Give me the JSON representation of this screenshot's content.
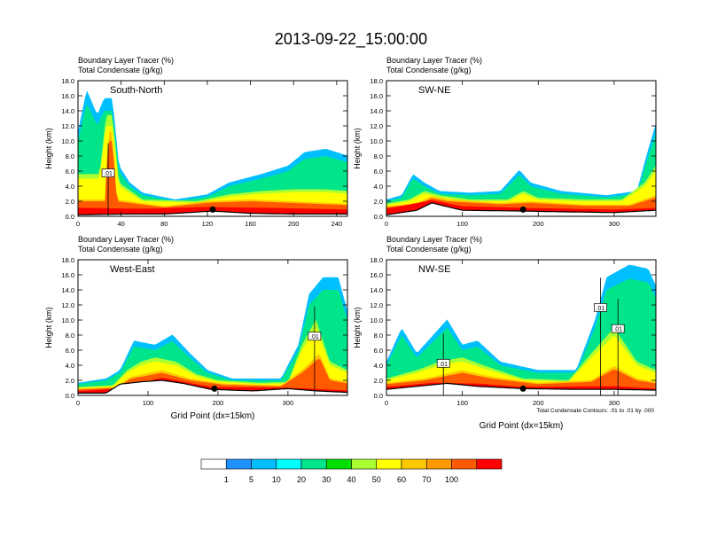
{
  "title": "2013-09-22_15:00:00",
  "panel_header_line1": "Boundary Layer Tracer   (%)",
  "panel_header_line2": "Total Condensate   (g/kg)",
  "ylabel": "Height (km)",
  "xlabel": "Grid Point (dx=15km)",
  "contour_note": "Total Condensate Contours: .01 to .01 by .000",
  "chart_data": [
    {
      "type": "heatmap",
      "panel": "South-North",
      "label": "South-North",
      "xlim": [
        0,
        250
      ],
      "xticks": [
        0,
        40,
        80,
        120,
        160,
        200,
        240
      ],
      "ylim": [
        0,
        18
      ],
      "yticks": [
        0.0,
        2.0,
        4.0,
        6.0,
        8.0,
        10.0,
        12.0,
        14.0,
        16.0,
        18.0
      ],
      "contour_label": ".01",
      "contour_label_pos": [
        28,
        5.7
      ],
      "marker_point": [
        125,
        0.9
      ],
      "terrain": [
        [
          0,
          0.2
        ],
        [
          40,
          0.3
        ],
        [
          80,
          0.3
        ],
        [
          125,
          0.7
        ],
        [
          160,
          0.4
        ],
        [
          200,
          0.3
        ],
        [
          250,
          0.3
        ]
      ],
      "tracer_layers": [
        {
          "level": 20,
          "top": [
            [
              0,
              10
            ],
            [
              8,
              15
            ],
            [
              18,
              12
            ],
            [
              24,
              14
            ],
            [
              32,
              14
            ],
            [
              38,
              6
            ],
            [
              48,
              4
            ],
            [
              60,
              2.8
            ],
            [
              90,
              2
            ],
            [
              120,
              2.6
            ],
            [
              140,
              4
            ],
            [
              170,
              5
            ],
            [
              195,
              6
            ],
            [
              210,
              7.6
            ],
            [
              230,
              8
            ],
            [
              250,
              7.2
            ]
          ]
        },
        {
          "level": 50,
          "top": [
            [
              0,
              5
            ],
            [
              20,
              5
            ],
            [
              26,
              12
            ],
            [
              32,
              12
            ],
            [
              38,
              4
            ],
            [
              60,
              2
            ],
            [
              110,
              1.8
            ],
            [
              140,
              2.6
            ],
            [
              170,
              3
            ],
            [
              200,
              3.2
            ],
            [
              230,
              3.2
            ],
            [
              250,
              3
            ]
          ]
        },
        {
          "level": 70,
          "top": [
            [
              0,
              2
            ],
            [
              25,
              2
            ],
            [
              28,
              10
            ],
            [
              32,
              10
            ],
            [
              36,
              2
            ],
            [
              80,
              1.2
            ],
            [
              120,
              1.8
            ],
            [
              160,
              2
            ],
            [
              195,
              1.8
            ],
            [
              250,
              1.5
            ]
          ]
        },
        {
          "level": 100,
          "top": [
            [
              0,
              1
            ],
            [
              60,
              0.9
            ],
            [
              120,
              1.1
            ],
            [
              180,
              1
            ],
            [
              250,
              0.8
            ]
          ]
        }
      ]
    },
    {
      "type": "heatmap",
      "panel": "SW-NE",
      "label": "SW-NE",
      "xlim": [
        0,
        355
      ],
      "xticks": [
        0,
        100,
        200,
        300
      ],
      "ylim": [
        0,
        18
      ],
      "yticks": [
        0.0,
        2.0,
        4.0,
        6.0,
        8.0,
        10.0,
        12.0,
        14.0,
        16.0,
        18.0
      ],
      "contour_label": "",
      "marker_point": [
        180,
        0.9
      ],
      "terrain": [
        [
          0,
          0.2
        ],
        [
          40,
          0.8
        ],
        [
          60,
          1.8
        ],
        [
          75,
          1.4
        ],
        [
          100,
          0.8
        ],
        [
          180,
          0.7
        ],
        [
          230,
          0.6
        ],
        [
          300,
          0.5
        ],
        [
          355,
          0.8
        ]
      ],
      "tracer_layers": [
        {
          "level": 20,
          "top": [
            [
              0,
              2
            ],
            [
              20,
              2.5
            ],
            [
              35,
              5
            ],
            [
              50,
              4
            ],
            [
              70,
              3
            ],
            [
              110,
              2.8
            ],
            [
              150,
              3
            ],
            [
              175,
              5.5
            ],
            [
              190,
              4
            ],
            [
              230,
              3
            ],
            [
              290,
              2.5
            ],
            [
              330,
              3
            ],
            [
              345,
              8
            ],
            [
              355,
              11
            ]
          ]
        },
        {
          "level": 50,
          "top": [
            [
              0,
              1.5
            ],
            [
              30,
              2
            ],
            [
              50,
              3
            ],
            [
              70,
              2.5
            ],
            [
              110,
              2
            ],
            [
              160,
              2
            ],
            [
              180,
              3
            ],
            [
              200,
              2.2
            ],
            [
              260,
              2
            ],
            [
              310,
              2
            ],
            [
              340,
              4
            ],
            [
              355,
              6
            ]
          ]
        },
        {
          "level": 70,
          "top": [
            [
              0,
              1.2
            ],
            [
              40,
              1.6
            ],
            [
              60,
              2.4
            ],
            [
              80,
              2
            ],
            [
              150,
              1.6
            ],
            [
              190,
              1.8
            ],
            [
              260,
              1.4
            ],
            [
              320,
              1.4
            ],
            [
              355,
              2.5
            ]
          ]
        },
        {
          "level": 100,
          "top": [
            [
              0,
              0.9
            ],
            [
              60,
              1.9
            ],
            [
              100,
              1.2
            ],
            [
              180,
              1
            ],
            [
              300,
              0.8
            ],
            [
              355,
              1
            ]
          ]
        }
      ]
    },
    {
      "type": "heatmap",
      "panel": "West-East",
      "label": "West-East",
      "xlim": [
        0,
        385
      ],
      "xticks": [
        0,
        100,
        200,
        300
      ],
      "ylim": [
        0,
        18
      ],
      "yticks": [
        0.0,
        2.0,
        4.0,
        6.0,
        8.0,
        10.0,
        12.0,
        14.0,
        16.0,
        18.0
      ],
      "contour_label": ".01",
      "contour_label_pos": [
        338,
        7.8
      ],
      "marker_point": [
        195,
        0.9
      ],
      "terrain": [
        [
          0,
          0.3
        ],
        [
          40,
          0.3
        ],
        [
          60,
          1.5
        ],
        [
          90,
          1.8
        ],
        [
          120,
          2
        ],
        [
          150,
          1.6
        ],
        [
          190,
          0.8
        ],
        [
          250,
          0.6
        ],
        [
          300,
          0.9
        ],
        [
          340,
          0.6
        ],
        [
          385,
          0.4
        ]
      ],
      "tracer_layers": [
        {
          "level": 20,
          "top": [
            [
              0,
              1.5
            ],
            [
              40,
              2
            ],
            [
              60,
              3
            ],
            [
              80,
              6.5
            ],
            [
              110,
              6
            ],
            [
              135,
              7.2
            ],
            [
              160,
              5
            ],
            [
              185,
              3
            ],
            [
              220,
              2
            ],
            [
              290,
              2
            ],
            [
              315,
              6
            ],
            [
              330,
              12
            ],
            [
              350,
              14
            ],
            [
              372,
              14
            ],
            [
              385,
              10
            ]
          ]
        },
        {
          "level": 50,
          "top": [
            [
              0,
              1
            ],
            [
              50,
              1.2
            ],
            [
              70,
              3
            ],
            [
              90,
              4
            ],
            [
              110,
              4.5
            ],
            [
              140,
              4
            ],
            [
              170,
              2.5
            ],
            [
              200,
              1.8
            ],
            [
              260,
              1.5
            ],
            [
              300,
              1.6
            ],
            [
              320,
              6
            ],
            [
              340,
              9
            ],
            [
              360,
              4
            ],
            [
              385,
              3
            ]
          ]
        },
        {
          "level": 70,
          "top": [
            [
              0,
              0.8
            ],
            [
              55,
              1
            ],
            [
              75,
              2.2
            ],
            [
              120,
              3
            ],
            [
              160,
              2
            ],
            [
              210,
              1.4
            ],
            [
              290,
              1.2
            ],
            [
              320,
              3
            ],
            [
              345,
              5
            ],
            [
              360,
              2
            ],
            [
              385,
              1.6
            ]
          ]
        },
        {
          "level": 100,
          "top": [
            [
              0,
              0.5
            ],
            [
              60,
              0.8
            ],
            [
              120,
              2.1
            ],
            [
              190,
              1
            ],
            [
              300,
              0.9
            ],
            [
              385,
              0.6
            ]
          ]
        }
      ]
    },
    {
      "type": "heatmap",
      "panel": "NW-SE",
      "label": "NW-SE",
      "xlim": [
        0,
        355
      ],
      "xticks": [
        0,
        100,
        200,
        300
      ],
      "ylim": [
        0,
        18
      ],
      "yticks": [
        0.0,
        2.0,
        4.0,
        6.0,
        8.0,
        10.0,
        12.0,
        14.0,
        16.0,
        18.0
      ],
      "contour_label": ".01",
      "contour_label_pos": [
        75,
        4.2
      ],
      "contour_labels_extra": [
        [
          282,
          11.6
        ],
        [
          305,
          8.8
        ]
      ],
      "marker_point": [
        180,
        0.9
      ],
      "terrain": [
        [
          0,
          0.8
        ],
        [
          40,
          1.2
        ],
        [
          80,
          1.6
        ],
        [
          120,
          1.2
        ],
        [
          180,
          0.9
        ],
        [
          250,
          0.8
        ],
        [
          300,
          0.8
        ],
        [
          355,
          0.7
        ]
      ],
      "tracer_layers": [
        {
          "level": 20,
          "top": [
            [
              0,
              4
            ],
            [
              20,
              8
            ],
            [
              40,
              5
            ],
            [
              60,
              7
            ],
            [
              80,
              9
            ],
            [
              100,
              6
            ],
            [
              120,
              6.5
            ],
            [
              150,
              4
            ],
            [
              200,
              3
            ],
            [
              250,
              3
            ],
            [
              275,
              9
            ],
            [
              290,
              14
            ],
            [
              320,
              15.5
            ],
            [
              345,
              15
            ],
            [
              355,
              13
            ]
          ]
        },
        {
          "level": 50,
          "top": [
            [
              0,
              2
            ],
            [
              40,
              3
            ],
            [
              70,
              4
            ],
            [
              100,
              4.5
            ],
            [
              130,
              3.5
            ],
            [
              180,
              2
            ],
            [
              240,
              1.8
            ],
            [
              270,
              5
            ],
            [
              300,
              8
            ],
            [
              330,
              4
            ],
            [
              355,
              3
            ]
          ]
        },
        {
          "level": 70,
          "top": [
            [
              0,
              1.5
            ],
            [
              50,
              2
            ],
            [
              100,
              3
            ],
            [
              140,
              2.2
            ],
            [
              200,
              1.5
            ],
            [
              270,
              1.8
            ],
            [
              300,
              3.5
            ],
            [
              330,
              2
            ],
            [
              355,
              1.6
            ]
          ]
        },
        {
          "level": 100,
          "top": [
            [
              0,
              1
            ],
            [
              60,
              1.5
            ],
            [
              120,
              1.4
            ],
            [
              180,
              1
            ],
            [
              300,
              1.1
            ],
            [
              355,
              0.8
            ]
          ]
        }
      ]
    }
  ],
  "colorbar": {
    "labels": [
      "1",
      "5",
      "10",
      "20",
      "30",
      "40",
      "50",
      "60",
      "70",
      "100"
    ],
    "colors": [
      "#ffffff",
      "#1e90ff",
      "#00bfff",
      "#00ffff",
      "#00e58a",
      "#00e000",
      "#aaff32",
      "#ffff00",
      "#ffc800",
      "#ff9900",
      "#ff5a00",
      "#ff0000"
    ]
  }
}
